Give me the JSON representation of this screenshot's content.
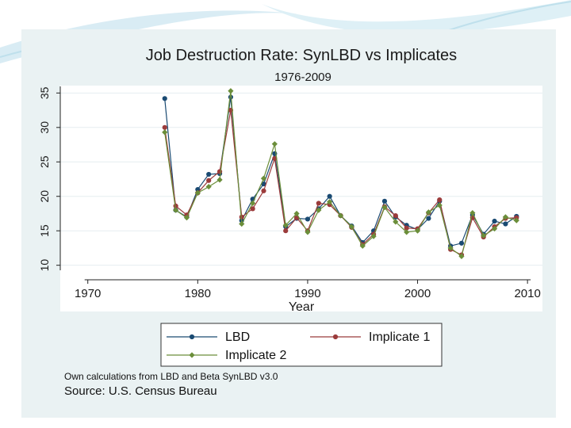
{
  "chart_data": {
    "type": "line",
    "title": "Job Destruction Rate: SynLBD vs Implicates",
    "subtitle": "1976-2009",
    "xlabel": "Year",
    "ylabel": "",
    "xlim": [
      1968,
      2011
    ],
    "ylim": [
      9.5,
      35.5
    ],
    "xticks": [
      1970,
      1980,
      1990,
      2000,
      2010
    ],
    "yticks": [
      10,
      15,
      20,
      25,
      30,
      35
    ],
    "grid": "horizontal",
    "legend_position": "bottom",
    "series": [
      {
        "name": "LBD",
        "color": "#1a4a72",
        "marker": "circle",
        "x": [
          1977,
          1978,
          1979,
          1980,
          1981,
          1982,
          1983,
          1984,
          1985,
          1986,
          1987,
          1988,
          1989,
          1990,
          1991,
          1992,
          1993,
          1994,
          1995,
          1996,
          1997,
          1998,
          1999,
          2000,
          2001,
          2002,
          2003,
          2004,
          2005,
          2006,
          2007,
          2008,
          2009
        ],
        "values": [
          34.2,
          18.0,
          17.0,
          21.0,
          23.2,
          23.3,
          34.4,
          16.5,
          19.6,
          21.8,
          26.2,
          15.6,
          16.8,
          16.7,
          18.2,
          20.0,
          17.2,
          15.7,
          13.3,
          15.0,
          19.3,
          17.0,
          15.8,
          15.2,
          16.8,
          19.3,
          12.8,
          13.2,
          17.3,
          14.5,
          16.4,
          16.0,
          17.1
        ]
      },
      {
        "name": "Implicate 1",
        "color": "#9b3b3b",
        "marker": "circle",
        "x": [
          1977,
          1978,
          1979,
          1980,
          1981,
          1982,
          1983,
          1984,
          1985,
          1986,
          1987,
          1988,
          1989,
          1990,
          1991,
          1992,
          1993,
          1994,
          1995,
          1996,
          1997,
          1998,
          1999,
          2000,
          2001,
          2002,
          2003,
          2004,
          2005,
          2006,
          2007,
          2008,
          2009
        ],
        "values": [
          30.0,
          18.6,
          17.3,
          20.5,
          22.3,
          23.6,
          32.5,
          17.0,
          18.2,
          20.8,
          25.5,
          15.0,
          16.9,
          15.0,
          19.0,
          18.8,
          17.2,
          15.5,
          13.0,
          14.5,
          18.5,
          17.2,
          15.4,
          15.3,
          17.6,
          19.5,
          12.3,
          11.5,
          16.9,
          14.1,
          15.6,
          16.8,
          16.9
        ]
      },
      {
        "name": "Implicate 2",
        "color": "#6b8e3a",
        "marker": "diamond",
        "x": [
          1977,
          1978,
          1979,
          1980,
          1981,
          1982,
          1983,
          1984,
          1985,
          1986,
          1987,
          1988,
          1989,
          1990,
          1991,
          1992,
          1993,
          1994,
          1995,
          1996,
          1997,
          1998,
          1999,
          2000,
          2001,
          2002,
          2003,
          2004,
          2005,
          2006,
          2007,
          2008,
          2009
        ],
        "values": [
          29.3,
          18.0,
          16.9,
          20.5,
          21.4,
          22.4,
          35.3,
          16.0,
          19.0,
          22.6,
          27.6,
          15.8,
          17.5,
          14.8,
          18.0,
          19.2,
          17.2,
          15.6,
          12.8,
          14.2,
          18.4,
          16.3,
          14.8,
          15.0,
          17.7,
          18.7,
          12.5,
          11.3,
          17.6,
          14.3,
          15.3,
          17.0,
          16.5
        ]
      }
    ],
    "notes": [
      "Own calculations from LBD and Beta SynLBD v3.0",
      "Source: U.S. Census Bureau"
    ]
  },
  "colors": {
    "figure_bg": "#eaf2f3",
    "plot_bg": "#ffffff",
    "gridline": "#e6eef0",
    "axis": "#222222"
  }
}
